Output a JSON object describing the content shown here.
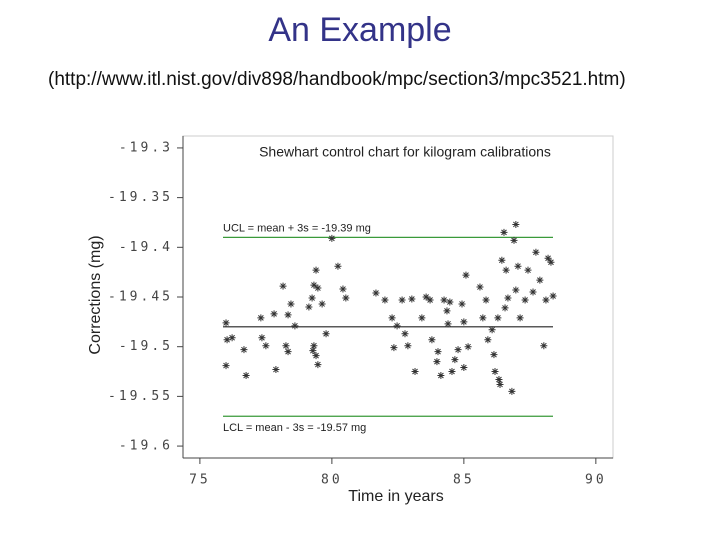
{
  "slide": {
    "title": "An Example",
    "subtitle": "(http://www.itl.nist.gov/div898/handbook/mpc/section3/mpc3521.htm)"
  },
  "chart_data": {
    "type": "scatter",
    "title": "Shewhart control chart for kilogram calibrations",
    "x_label": "Time in years",
    "y_label": "Corrections (mg)",
    "xlim": [
      74.36,
      90.65
    ],
    "xticks": [
      75,
      80,
      85,
      90
    ],
    "ylim": [
      -19.612,
      -19.288
    ],
    "yticks": [
      -19.3,
      -19.35,
      -19.4,
      -19.45,
      -19.5,
      -19.55,
      -19.6
    ],
    "color": "#333333",
    "reference_lines": [
      {
        "value": -19.39,
        "label": "UCL = mean + 3s = -19.39 mg",
        "color": "#3a9a3a"
      },
      {
        "value": -19.48,
        "color": "#222222"
      },
      {
        "value": -19.57,
        "label": "LCL = mean - 3s = -19.57 mg",
        "color": "#3a9a3a"
      }
    ],
    "x": [
      75.99,
      76.03,
      75.99,
      76.22,
      76.67,
      76.75,
      77.31,
      77.35,
      77.5,
      77.81,
      77.88,
      78.15,
      78.26,
      78.34,
      78.34,
      78.45,
      78.6,
      79.32,
      79.4,
      79.47,
      79.25,
      79.13,
      79.32,
      79.4,
      79.47,
      79.28,
      79.63,
      79.78,
      80.0,
      80.23,
      80.42,
      80.53,
      81.67,
      82.01,
      82.28,
      82.35,
      82.47,
      82.66,
      82.77,
      82.88,
      83.03,
      83.15,
      83.41,
      83.57,
      83.72,
      83.79,
      84.02,
      83.98,
      84.13,
      84.25,
      84.36,
      84.4,
      84.47,
      84.55,
      84.66,
      84.78,
      84.93,
      85.0,
      85.0,
      85.16,
      85.08,
      85.61,
      85.72,
      85.84,
      85.91,
      86.07,
      86.14,
      86.18,
      86.29,
      86.33,
      86.37,
      86.44,
      86.52,
      86.56,
      86.6,
      86.67,
      86.82,
      86.9,
      86.97,
      86.97,
      87.05,
      87.13,
      87.32,
      87.43,
      87.62,
      87.73,
      87.88,
      88.03,
      88.11,
      88.19,
      88.3,
      88.38
    ],
    "values": [
      -19.476,
      -19.493,
      -19.519,
      -19.491,
      -19.503,
      -19.529,
      -19.471,
      -19.491,
      -19.499,
      -19.467,
      -19.523,
      -19.439,
      -19.499,
      -19.468,
      -19.505,
      -19.457,
      -19.479,
      -19.438,
      -19.423,
      -19.441,
      -19.451,
      -19.46,
      -19.499,
      -19.509,
      -19.518,
      -19.504,
      -19.457,
      -19.487,
      -19.391,
      -19.419,
      -19.442,
      -19.451,
      -19.446,
      -19.453,
      -19.471,
      -19.501,
      -19.479,
      -19.453,
      -19.487,
      -19.499,
      -19.452,
      -19.525,
      -19.471,
      -19.45,
      -19.453,
      -19.493,
      -19.505,
      -19.515,
      -19.529,
      -19.453,
      -19.464,
      -19.477,
      -19.455,
      -19.525,
      -19.513,
      -19.503,
      -19.457,
      -19.521,
      -19.475,
      -19.5,
      -19.428,
      -19.44,
      -19.471,
      -19.453,
      -19.493,
      -19.483,
      -19.508,
      -19.525,
      -19.471,
      -19.533,
      -19.538,
      -19.413,
      -19.385,
      -19.461,
      -19.423,
      -19.451,
      -19.545,
      -19.393,
      -19.377,
      -19.443,
      -19.419,
      -19.471,
      -19.453,
      -19.423,
      -19.445,
      -19.405,
      -19.433,
      -19.499,
      -19.453,
      -19.411,
      -19.415,
      -19.449
    ]
  }
}
